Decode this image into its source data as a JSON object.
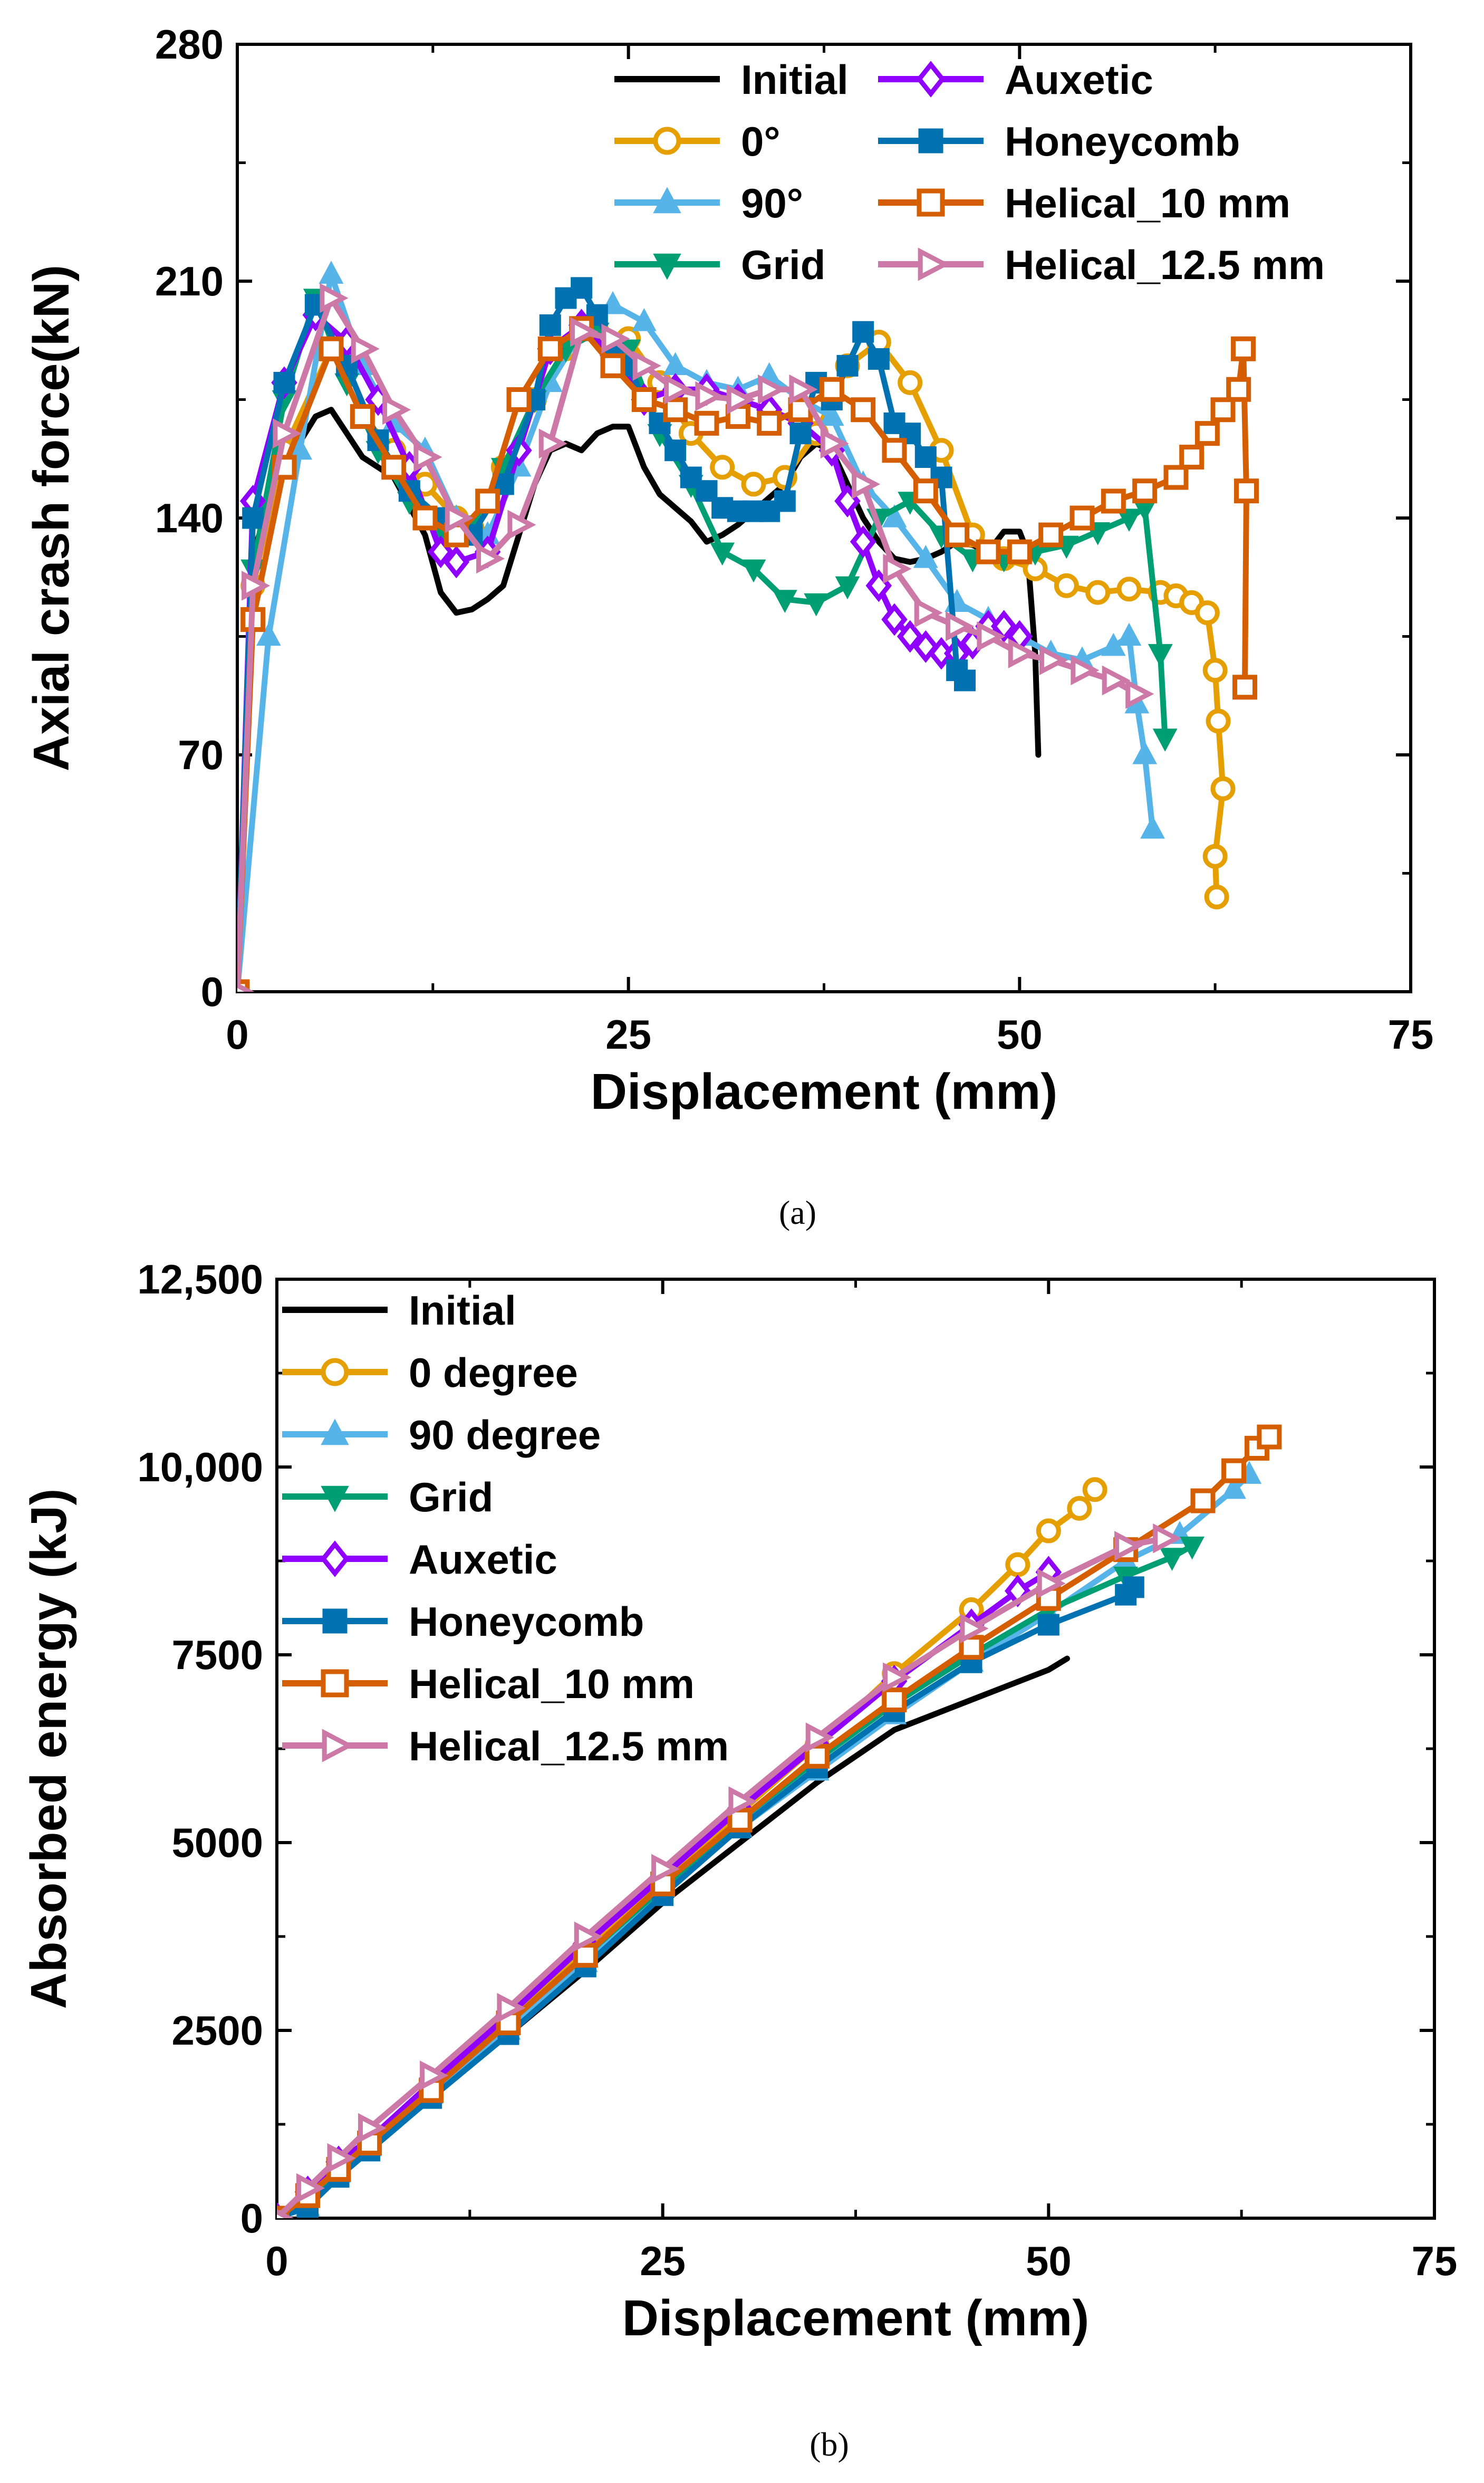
{
  "colors": {
    "Initial": "#000000",
    "0": "#E69F00",
    "90": "#56B4E9",
    "Grid": "#009E73",
    "Auxetic": "#8F00FF",
    "Honeycomb": "#0072B2",
    "Helical10": "#D55E00",
    "Helical12": "#CC79A7"
  },
  "chart_data": [
    {
      "type": "line",
      "caption": "(a)",
      "xlabel": "Displacement (mm)",
      "ylabel": "Axial crash force(kN)",
      "xlim": [
        0,
        75
      ],
      "ylim": [
        0,
        280
      ],
      "xticks": [
        0,
        25,
        50,
        75
      ],
      "yticks": [
        0,
        70,
        140,
        210,
        280
      ],
      "legend_position": "top-right",
      "legend_columns": [
        [
          "Initial",
          "0°",
          "90°",
          "Grid"
        ],
        [
          "Auxetic",
          "Honeycomb",
          "Helical_10 mm",
          "Helical_12.5 mm"
        ]
      ],
      "series": [
        {
          "name": "Initial",
          "key": "Initial",
          "marker": "none",
          "x": [
            0,
            1,
            3,
            5,
            6,
            7,
            8,
            10,
            12,
            13,
            14,
            15,
            16,
            17,
            18,
            19,
            20,
            21,
            22,
            23,
            24,
            25,
            26,
            27,
            28,
            29,
            30,
            31,
            32,
            33,
            34,
            35,
            36,
            37,
            38,
            39,
            40,
            41,
            42,
            43,
            44,
            45,
            46,
            47,
            48,
            49,
            50,
            50.5,
            51,
            51.2
          ],
          "y": [
            0,
            130,
            155,
            170,
            172,
            165,
            158,
            152,
            135,
            118,
            112,
            113,
            116,
            120,
            135,
            150,
            160,
            162,
            160,
            165,
            167,
            167,
            155,
            147,
            143,
            139,
            133,
            135,
            138,
            142,
            146,
            150,
            158,
            162,
            160,
            150,
            140,
            133,
            128,
            127,
            128,
            130,
            133,
            132,
            130,
            136,
            136,
            130,
            100,
            70
          ]
        },
        {
          "name": "0°",
          "key": "0",
          "marker": "circle",
          "x": [
            0,
            1,
            3,
            6,
            8,
            10,
            12,
            14,
            15,
            17,
            19,
            21,
            23,
            25,
            27,
            29,
            31,
            33,
            35,
            37,
            39,
            41,
            43,
            45,
            47,
            49,
            51,
            53,
            55,
            57,
            59,
            60,
            61,
            62,
            62.5,
            62.7,
            63,
            62.5,
            62.6
          ],
          "y": [
            0,
            120,
            160,
            190,
            170,
            160,
            150,
            140,
            137,
            155,
            175,
            190,
            195,
            193,
            180,
            165,
            155,
            150,
            152,
            165,
            185,
            192,
            180,
            160,
            135,
            128,
            125,
            120,
            118,
            119,
            118,
            117,
            115,
            112,
            95,
            80,
            60,
            40,
            28
          ]
        },
        {
          "name": "90°",
          "key": "90",
          "marker": "triangle-up",
          "x": [
            0,
            2,
            4,
            6,
            8,
            10,
            12,
            14,
            16,
            18,
            20,
            22,
            24,
            26,
            28,
            30,
            32,
            34,
            36,
            38,
            40,
            42,
            44,
            46,
            48,
            50,
            52,
            54,
            56,
            57,
            57.5,
            58,
            58.5
          ],
          "y": [
            0,
            105,
            160,
            212,
            185,
            168,
            160,
            140,
            135,
            155,
            180,
            195,
            203,
            198,
            185,
            180,
            178,
            182,
            175,
            170,
            150,
            140,
            128,
            115,
            110,
            105,
            100,
            98,
            102,
            105,
            85,
            70,
            48
          ]
        },
        {
          "name": "Grid",
          "key": "Grid",
          "marker": "triangle-down",
          "x": [
            0,
            1,
            3,
            5,
            7,
            9,
            11,
            13,
            15,
            17,
            19,
            21,
            23,
            25,
            27,
            29,
            31,
            33,
            35,
            37,
            39,
            41,
            43,
            45,
            47,
            49,
            51,
            53,
            55,
            57,
            58,
            59,
            59.3
          ],
          "y": [
            0,
            125,
            175,
            205,
            180,
            160,
            145,
            135,
            138,
            155,
            175,
            190,
            195,
            190,
            165,
            150,
            130,
            125,
            116,
            115,
            120,
            140,
            145,
            135,
            128,
            128,
            130,
            132,
            136,
            140,
            143,
            100,
            75
          ]
        },
        {
          "name": "Auxetic",
          "key": "Auxetic",
          "marker": "diamond",
          "x": [
            0,
            1,
            3,
            5,
            7,
            9,
            11,
            13,
            14,
            16,
            18,
            20,
            22,
            24,
            26,
            28,
            30,
            32,
            34,
            36,
            38,
            39,
            40,
            41,
            42,
            43,
            44,
            45,
            46,
            47,
            48,
            49,
            50
          ],
          "y": [
            0,
            145,
            180,
            200,
            192,
            175,
            155,
            130,
            127,
            130,
            160,
            190,
            197,
            188,
            175,
            178,
            178,
            175,
            172,
            168,
            160,
            145,
            133,
            120,
            110,
            105,
            102,
            100,
            100,
            103,
            108,
            108,
            105
          ]
        },
        {
          "name": "Honeycomb",
          "key": "Honeycomb",
          "marker": "square",
          "x": [
            0,
            1,
            3,
            5,
            7,
            9,
            11,
            13,
            15,
            17,
            19,
            20,
            21,
            22,
            23,
            24,
            25,
            26,
            27,
            28,
            29,
            30,
            31,
            32,
            33,
            34,
            35,
            36,
            37,
            38,
            39,
            40,
            41,
            42,
            43,
            44,
            45,
            46,
            46.5
          ],
          "y": [
            0,
            140,
            180,
            203,
            185,
            163,
            148,
            140,
            135,
            150,
            175,
            197,
            205,
            208,
            200,
            190,
            185,
            175,
            168,
            160,
            152,
            148,
            143,
            142,
            142,
            142,
            145,
            165,
            180,
            175,
            185,
            195,
            187,
            168,
            165,
            158,
            152,
            95,
            92
          ]
        },
        {
          "name": "Helical_10 mm",
          "key": "Helical10",
          "marker": "square-open",
          "x": [
            0,
            1,
            3,
            6,
            8,
            10,
            12,
            14,
            16,
            18,
            20,
            22,
            24,
            26,
            28,
            30,
            32,
            34,
            36,
            38,
            40,
            42,
            44,
            46,
            48,
            50,
            52,
            54,
            56,
            58,
            60,
            61,
            62,
            63,
            64,
            64.3,
            64.5,
            64.4
          ],
          "y": [
            0,
            110,
            155,
            190,
            170,
            155,
            140,
            135,
            145,
            175,
            190,
            196,
            185,
            175,
            172,
            168,
            170,
            168,
            172,
            178,
            172,
            160,
            148,
            135,
            130,
            130,
            135,
            140,
            145,
            148,
            152,
            158,
            165,
            172,
            178,
            190,
            148,
            90
          ]
        },
        {
          "name": "Helical_12.5 mm",
          "key": "Helical12",
          "marker": "triangle-right",
          "x": [
            0,
            1,
            3,
            6,
            8,
            10,
            12,
            14,
            16,
            18,
            20,
            22,
            24,
            26,
            28,
            30,
            32,
            34,
            36,
            38,
            40,
            42,
            44,
            46,
            48,
            50,
            52,
            54,
            56,
            57.5
          ],
          "y": [
            0,
            120,
            165,
            205,
            190,
            172,
            158,
            140,
            128,
            138,
            162,
            195,
            193,
            185,
            178,
            176,
            175,
            178,
            178,
            162,
            150,
            125,
            112,
            108,
            105,
            100,
            98,
            95,
            92,
            88
          ]
        }
      ]
    },
    {
      "type": "line",
      "caption": "(b)",
      "xlabel": "Displacement (mm)",
      "ylabel": "Absorbed energy (kJ)",
      "xlim": [
        0,
        75
      ],
      "ylim": [
        0,
        12500
      ],
      "xticks": [
        0,
        25,
        50,
        75
      ],
      "yticks": [
        0,
        2500,
        5000,
        7500,
        10000,
        12500
      ],
      "ytick_labels": [
        "0",
        "2500",
        "5000",
        "7500",
        "10,000",
        "12,500"
      ],
      "legend_position": "top-left",
      "legend_entries": [
        "Initial",
        "0 degree",
        "90 degree",
        "Grid",
        "Auxetic",
        "Honeycomb",
        "Helical_10 mm",
        "Helical_12.5 mm"
      ],
      "series": [
        {
          "name": "Initial",
          "key": "Initial",
          "marker": "none",
          "x": [
            0,
            2,
            4,
            6,
            10,
            15,
            20,
            25,
            30,
            35,
            40,
            45,
            50,
            51.2
          ],
          "y": [
            0,
            200,
            600,
            950,
            1650,
            2450,
            3300,
            4200,
            5000,
            5800,
            6500,
            6900,
            7300,
            7450
          ]
        },
        {
          "name": "0 degree",
          "key": "0",
          "marker": "circle",
          "x": [
            0,
            2,
            4,
            6,
            10,
            15,
            20,
            25,
            30,
            35,
            40,
            45,
            48,
            50,
            52,
            53
          ],
          "y": [
            0,
            300,
            700,
            1000,
            1700,
            2600,
            3600,
            4500,
            5400,
            6300,
            7250,
            8100,
            8700,
            9150,
            9450,
            9700
          ]
        },
        {
          "name": "90 degree",
          "key": "90",
          "marker": "triangle-up",
          "x": [
            0,
            2,
            4,
            6,
            10,
            15,
            20,
            25,
            30,
            35,
            40,
            45,
            50,
            55,
            58.5,
            62,
            63
          ],
          "y": [
            0,
            150,
            600,
            950,
            1650,
            2500,
            3400,
            4400,
            5200,
            5950,
            6700,
            7400,
            8050,
            8750,
            9100,
            9700,
            9900
          ]
        },
        {
          "name": "Grid",
          "key": "Grid",
          "marker": "triangle-down",
          "x": [
            0,
            2,
            4,
            6,
            10,
            15,
            20,
            25,
            30,
            35,
            40,
            45,
            50,
            55,
            58,
            59.3
          ],
          "y": [
            0,
            200,
            650,
            1000,
            1750,
            2600,
            3500,
            4400,
            5300,
            6100,
            6850,
            7500,
            8100,
            8550,
            8800,
            8950
          ]
        },
        {
          "name": "Auxetic",
          "key": "Auxetic",
          "marker": "diamond",
          "x": [
            0,
            2,
            4,
            6,
            10,
            15,
            20,
            25,
            30,
            35,
            40,
            45,
            48,
            50
          ],
          "y": [
            0,
            350,
            750,
            1050,
            1800,
            2700,
            3650,
            4550,
            5450,
            6300,
            7150,
            7900,
            8350,
            8600
          ]
        },
        {
          "name": "Honeycomb",
          "key": "Honeycomb",
          "marker": "square",
          "x": [
            0,
            2,
            4,
            6,
            10,
            15,
            20,
            25,
            30,
            35,
            40,
            45,
            50,
            55,
            55.5
          ],
          "y": [
            0,
            150,
            550,
            900,
            1600,
            2450,
            3350,
            4300,
            5200,
            6000,
            6750,
            7400,
            7900,
            8300,
            8400
          ]
        },
        {
          "name": "Helical_10 mm",
          "key": "Helical10",
          "marker": "square-open",
          "x": [
            0,
            2,
            4,
            6,
            10,
            15,
            20,
            25,
            30,
            35,
            40,
            45,
            50,
            55,
            60,
            62,
            63.5,
            64.3
          ],
          "y": [
            0,
            300,
            650,
            1000,
            1700,
            2600,
            3500,
            4450,
            5300,
            6150,
            6900,
            7600,
            8250,
            8900,
            9550,
            9950,
            10250,
            10400
          ]
        },
        {
          "name": "Helical_12.5 mm",
          "key": "Helical12",
          "marker": "triangle-right",
          "x": [
            0,
            2,
            4,
            6,
            10,
            15,
            20,
            25,
            30,
            35,
            40,
            45,
            50,
            55,
            57.5
          ],
          "y": [
            0,
            400,
            800,
            1200,
            1900,
            2800,
            3750,
            4650,
            5550,
            6400,
            7200,
            7850,
            8450,
            8950,
            9050
          ]
        }
      ]
    }
  ]
}
